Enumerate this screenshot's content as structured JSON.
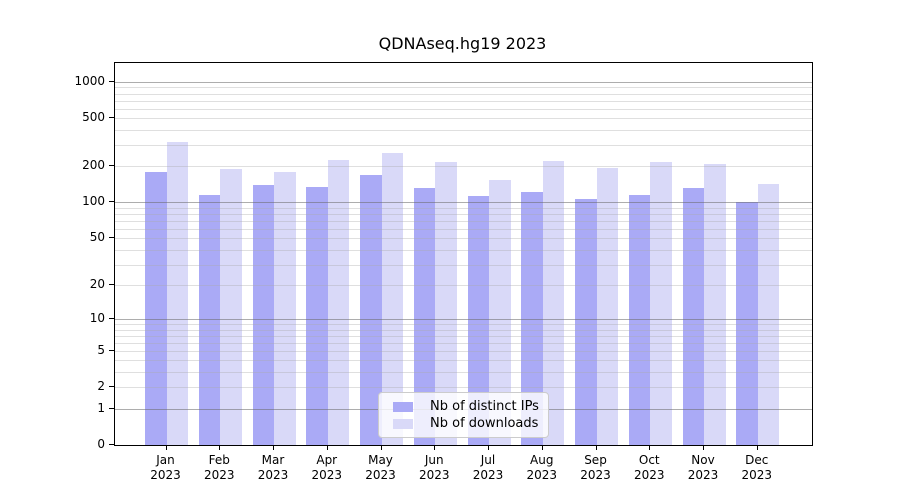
{
  "title": "QDNAseq.hg19 2023",
  "legend": {
    "items": [
      {
        "label": "Nb of distinct IPs",
        "color": "#aaaaf6"
      },
      {
        "label": "Nb of downloads",
        "color": "#d9d9f8"
      }
    ]
  },
  "colors": {
    "distinct_ips_bar": "#aaaaf6",
    "downloads_bar": "#d9d9f8",
    "major_gridline": "#b0b0b0",
    "minor_gridline": "#e8e8e8",
    "axis_frame": "#000000"
  },
  "chart_data": {
    "type": "bar",
    "title": "QDNAseq.hg19 2023",
    "categories": [
      "Jan",
      "Feb",
      "Mar",
      "Apr",
      "May",
      "Jun",
      "Jul",
      "Aug",
      "Sep",
      "Oct",
      "Nov",
      "Dec"
    ],
    "x_tick_year": "2023",
    "series": [
      {
        "name": "Nb of distinct IPs",
        "color": "#aaaaf6",
        "values": [
          181,
          116,
          140,
          135,
          170,
          133,
          114,
          122,
          106,
          116,
          133,
          100
        ]
      },
      {
        "name": "Nb of downloads",
        "color": "#d9d9f8",
        "values": [
          320,
          190,
          179,
          227,
          260,
          216,
          155,
          221,
          194,
          218,
          208,
          143
        ]
      }
    ],
    "yscale": "log10(value+1)",
    "y_tick_values": [
      0,
      1,
      2,
      5,
      10,
      20,
      50,
      100,
      200,
      500,
      1000
    ],
    "y_major_gridlines": [
      1,
      10,
      100,
      1000
    ],
    "y_minor_gridline_decades": [
      1,
      10,
      100
    ],
    "ylim": [
      0,
      1430
    ],
    "grid": "on",
    "legend_position": "lower-center"
  }
}
